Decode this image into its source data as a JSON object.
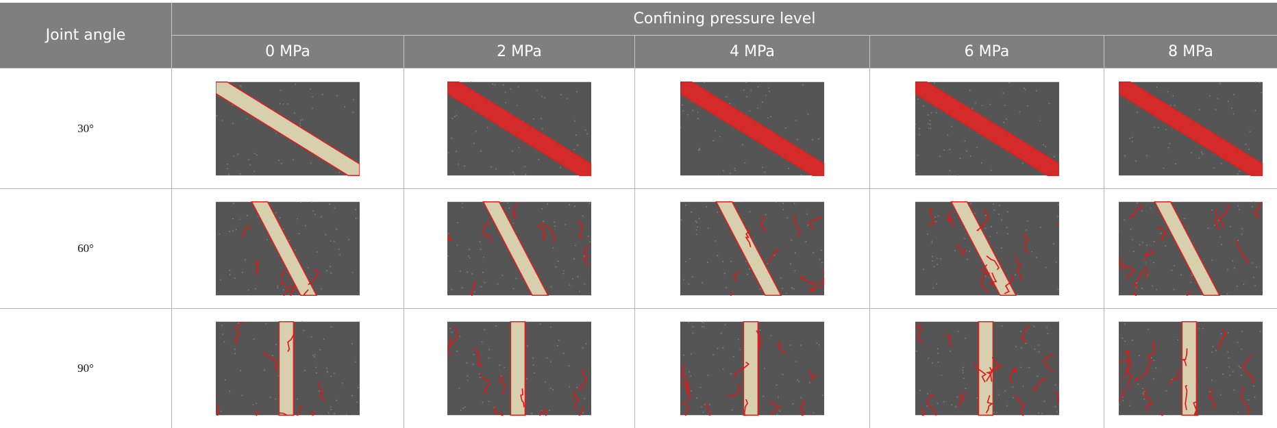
{
  "header": {
    "row_header": "Joint angle",
    "group": "Confining pressure level",
    "columns": [
      "0 MPa",
      "2 MPa",
      "4 MPa",
      "6 MPa",
      "8 MPa"
    ]
  },
  "rows": [
    {
      "label": "30°"
    },
    {
      "label": "60°"
    },
    {
      "label": "90°"
    }
  ]
}
